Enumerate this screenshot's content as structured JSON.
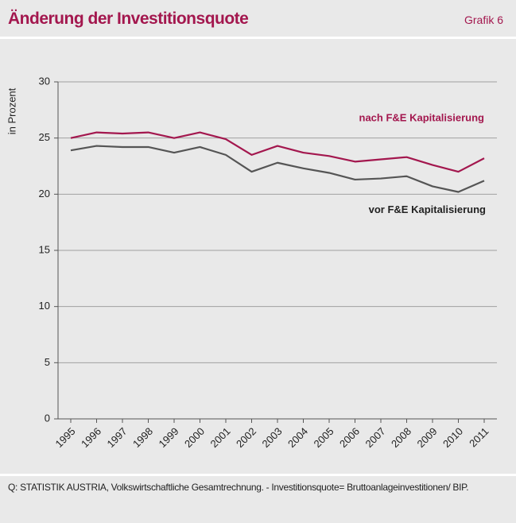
{
  "header": {
    "title": "Änderung der Investitionsquote",
    "label": "Grafik 6"
  },
  "chart_data": {
    "type": "line",
    "y_label": "in Prozent",
    "categories": [
      "1995",
      "1996",
      "1997",
      "1998",
      "1999",
      "2000",
      "2001",
      "2002",
      "2003",
      "2004",
      "2005",
      "2006",
      "2007",
      "2008",
      "2009",
      "2010",
      "2011"
    ],
    "series": [
      {
        "name": "nach F&E Kapitalisierung",
        "color": "#a3174e",
        "values": [
          25.0,
          25.5,
          25.4,
          25.5,
          25.0,
          25.5,
          24.9,
          23.5,
          24.3,
          23.7,
          23.4,
          22.9,
          23.1,
          23.3,
          22.6,
          22.0,
          23.2
        ]
      },
      {
        "name": "vor F&E Kapitalisierung",
        "color": "#555555",
        "values": [
          23.9,
          24.3,
          24.2,
          24.2,
          23.7,
          24.2,
          23.5,
          22.0,
          22.8,
          22.3,
          21.9,
          21.3,
          21.4,
          21.6,
          20.7,
          20.2,
          21.2
        ]
      }
    ],
    "ylim": [
      0,
      30
    ],
    "yticks": [
      0,
      5,
      10,
      15,
      20,
      25,
      30
    ],
    "grid": true
  },
  "footer": {
    "source": "Q: STATISTIK AUSTRIA, Volkswirtschaftliche Gesamtrechnung. - Investitionsquote= Bruttoanlageinvestitionen/ BIP."
  }
}
